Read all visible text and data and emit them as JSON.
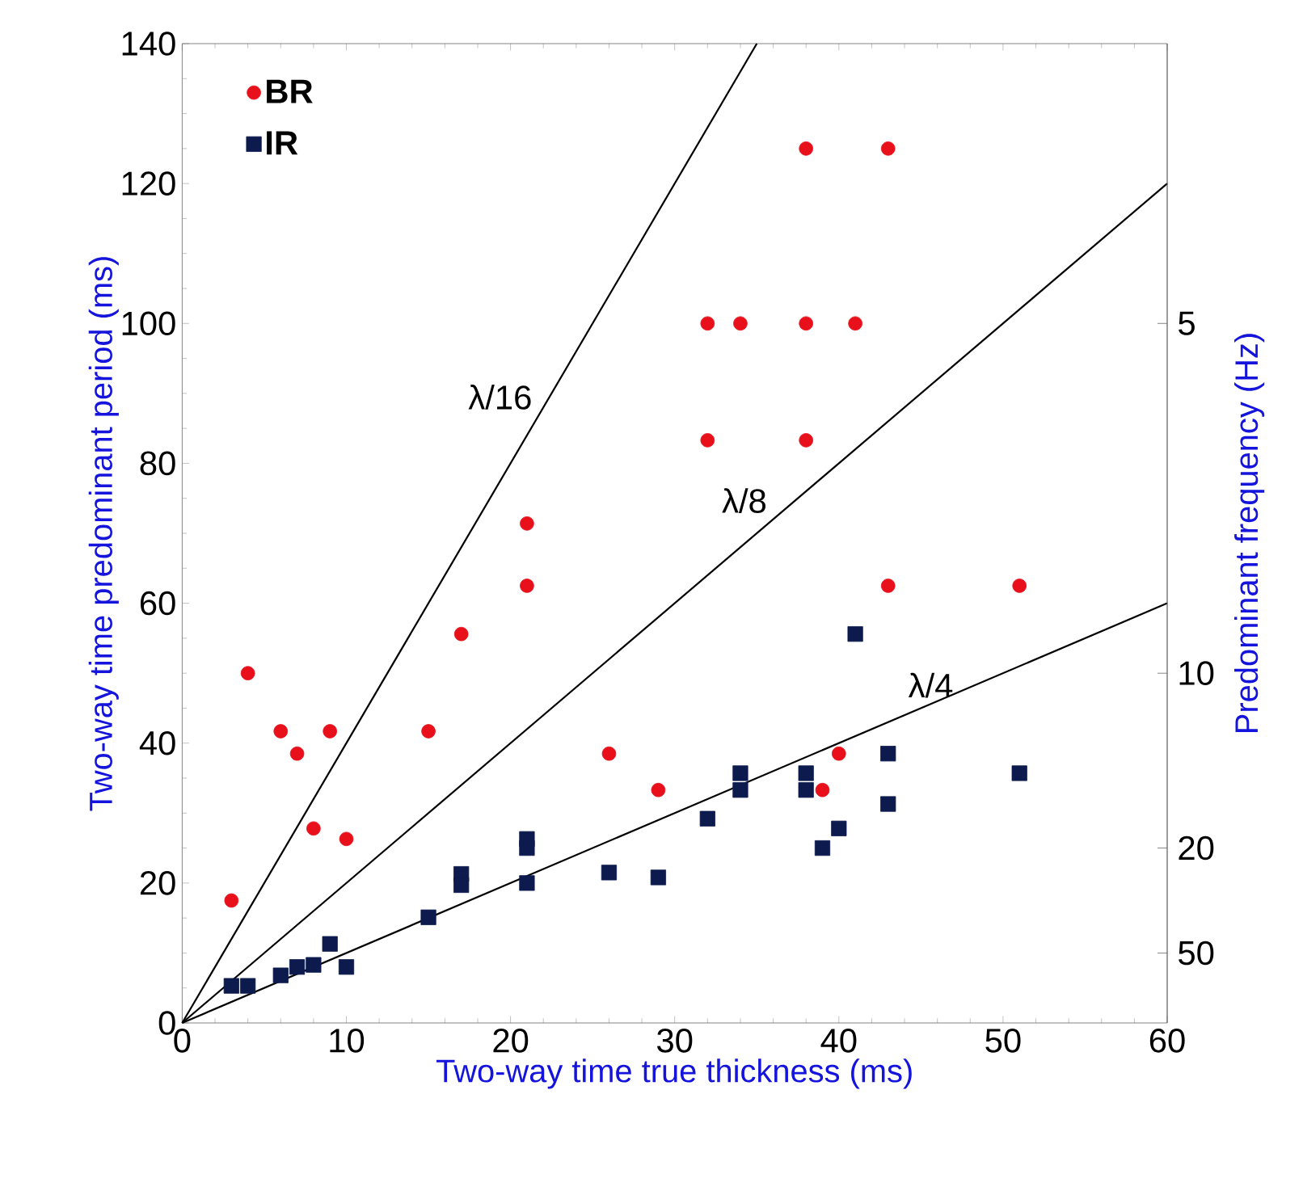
{
  "chart_data": {
    "type": "scatter",
    "xlabel": "Two-way time true thickness (ms)",
    "ylabel": "Two-way time predominant period (ms)",
    "y2label": "Predominant frequency (Hz)",
    "xlim": [
      0,
      60
    ],
    "xticks": [
      0,
      10,
      20,
      30,
      40,
      50,
      60
    ],
    "ylim": [
      0,
      140
    ],
    "yticks": [
      0,
      20,
      40,
      60,
      80,
      100,
      120,
      140
    ],
    "annotations": [
      "5",
      "10",
      "20",
      "50"
    ],
    "legend": "top left",
    "series": [
      {
        "name": "BR",
        "type": "scatter",
        "marker": "circle",
        "color": "#e8101a",
        "x": [
          3,
          4,
          6,
          7,
          8,
          9,
          10,
          15,
          17,
          21,
          21,
          26,
          29,
          32,
          32,
          34,
          38,
          38,
          38,
          39,
          40,
          41,
          43,
          43,
          51
        ],
        "values": [
          17.5,
          50,
          41.7,
          38.5,
          27.8,
          41.7,
          26.3,
          41.7,
          55.6,
          71.4,
          62.5,
          38.5,
          33.3,
          100,
          83.3,
          100,
          125,
          100,
          83.3,
          33.3,
          38.5,
          100,
          125,
          62.5,
          62.5
        ]
      },
      {
        "name": "IR",
        "type": "scatter",
        "marker": "square",
        "color": "#0c1a4e",
        "x": [
          3,
          4,
          6,
          7,
          8,
          9,
          10,
          15,
          17,
          17,
          21,
          21,
          21,
          26,
          29,
          32,
          34,
          34,
          38,
          38,
          39,
          40,
          41,
          43,
          43,
          51
        ],
        "values": [
          5.3,
          5.3,
          6.8,
          8,
          8.3,
          11.3,
          8,
          15.1,
          21.3,
          19.7,
          26.3,
          25,
          20,
          21.5,
          20.8,
          29.2,
          35.7,
          33.3,
          35.7,
          33.3,
          25,
          27.8,
          55.6,
          38.5,
          31.3,
          35.7
        ]
      },
      {
        "name": "λ/16",
        "type": "line",
        "color": "#000000",
        "x": [
          0,
          35
        ],
        "values": [
          0,
          140
        ]
      },
      {
        "name": "λ/8",
        "type": "line",
        "color": "#000000",
        "x": [
          0,
          60
        ],
        "values": [
          0,
          120
        ]
      },
      {
        "name": "λ/4",
        "type": "line",
        "color": "#000000",
        "x": [
          0,
          60
        ],
        "values": [
          0,
          60
        ]
      }
    ]
  }
}
